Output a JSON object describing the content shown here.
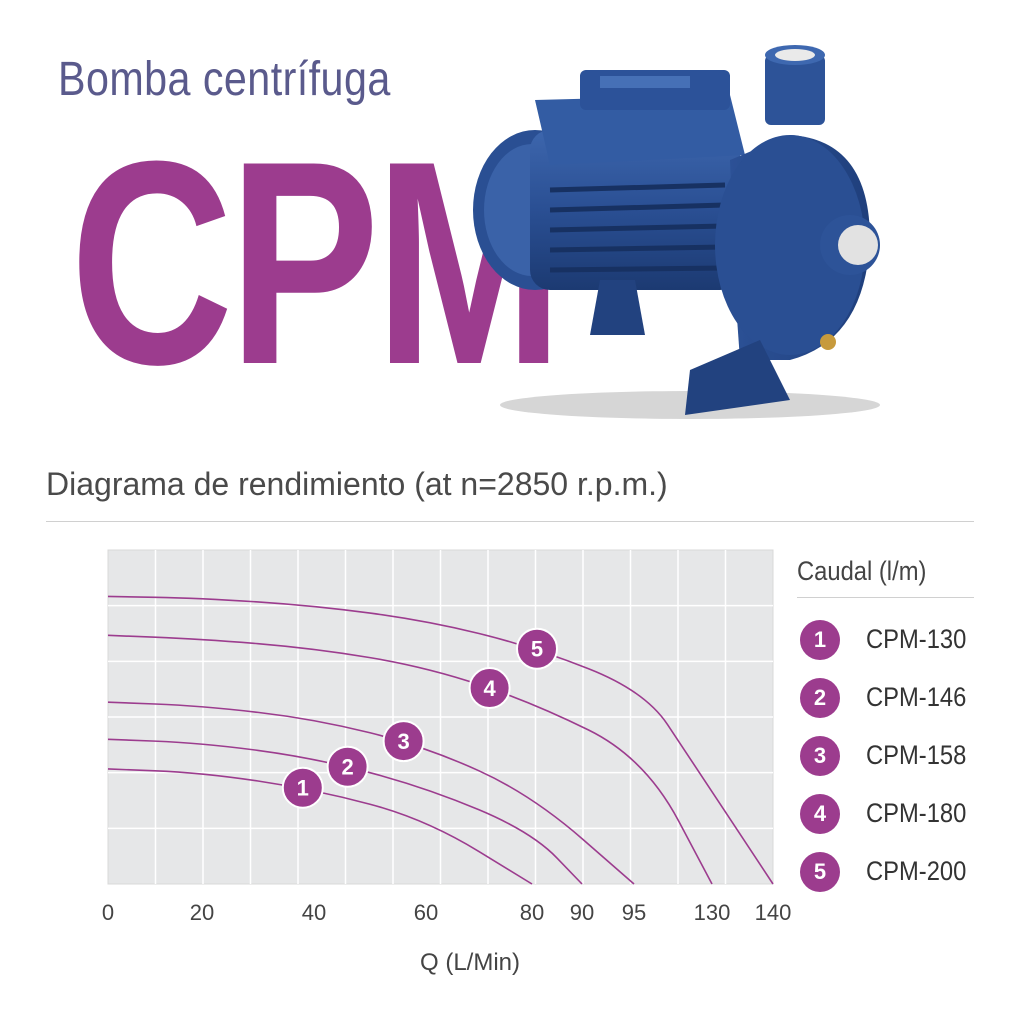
{
  "header": {
    "subtitle": "Bomba centrífuga",
    "model": "CPM"
  },
  "chart_heading": "Diagrama de rendimiento (at n=2850 r.p.m.)",
  "colors": {
    "accent": "#9c3c8e",
    "grid_bg": "#e6e7e8",
    "grid_line": "#ffffff",
    "pump": "#2f4f8f"
  },
  "icons": {
    "product": "centrifugal-pump-image"
  },
  "chart_data": {
    "type": "line",
    "xlabel": "Q (L/Min)",
    "ylabel": "",
    "x_ticks": [
      "0",
      "20",
      "40",
      "60",
      "80",
      "90",
      "95",
      "130",
      "140"
    ],
    "x_tick_positions": [
      0,
      20,
      40,
      60,
      80,
      90,
      95,
      130,
      140
    ],
    "xlim": [
      0,
      140
    ],
    "y_ticks": [],
    "grid": true,
    "legend_title": "Caudal (l/m)",
    "legend_position": "right",
    "series": [
      {
        "marker": "1",
        "name": "CPM-130",
        "x": [
          0,
          20,
          40,
          60,
          80
        ],
        "y": [
          3.1,
          3.0,
          2.55,
          1.75,
          0.0
        ],
        "label_x": 38
      },
      {
        "marker": "2",
        "name": "CPM-146",
        "x": [
          0,
          20,
          40,
          60,
          80,
          90
        ],
        "y": [
          3.9,
          3.8,
          3.4,
          2.6,
          1.4,
          0.0
        ],
        "label_x": 46
      },
      {
        "marker": "3",
        "name": "CPM-158",
        "x": [
          0,
          20,
          40,
          60,
          80,
          95
        ],
        "y": [
          4.9,
          4.8,
          4.45,
          3.7,
          2.4,
          0.0
        ],
        "label_x": 56
      },
      {
        "marker": "4",
        "name": "CPM-180",
        "x": [
          0,
          20,
          40,
          60,
          80,
          100,
          130
        ],
        "y": [
          6.7,
          6.6,
          6.35,
          5.85,
          4.9,
          3.4,
          0.0
        ],
        "label_x": 72
      },
      {
        "marker": "5",
        "name": "CPM-200",
        "x": [
          0,
          20,
          40,
          60,
          80,
          100,
          120,
          140
        ],
        "y": [
          7.75,
          7.7,
          7.5,
          7.1,
          6.4,
          5.2,
          3.4,
          0.0
        ],
        "label_x": 81
      }
    ]
  }
}
